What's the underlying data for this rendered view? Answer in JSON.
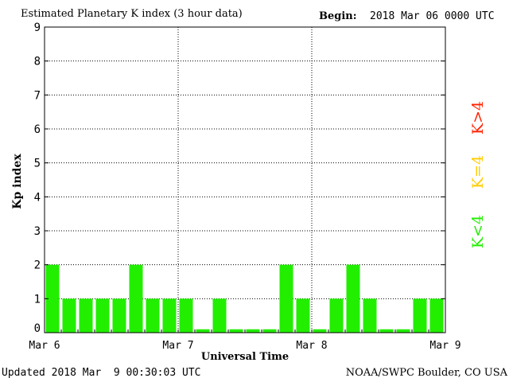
{
  "header": {
    "title": "Estimated Planetary K index (3 hour data)",
    "begin_label": "Begin:",
    "begin_value": "2018 Mar 06 0000 UTC"
  },
  "footer": {
    "updated": "Updated 2018 Mar  9 00:30:03 UTC",
    "credit": "NOAA/SWPC Boulder, CO USA"
  },
  "legend": {
    "high": {
      "label": "K>4",
      "color": "#ff2200"
    },
    "equal": {
      "label": "K=4",
      "color": "#ffcc00"
    },
    "low": {
      "label": "K<4",
      "color": "#22ee00"
    }
  },
  "chart_data": {
    "type": "bar",
    "title": "Estimated Planetary K index (3 hour data)",
    "xlabel": "Universal Time",
    "ylabel": "Kp index",
    "ylim": [
      0,
      9
    ],
    "yticks": [
      "0",
      "1",
      "2",
      "3",
      "4",
      "5",
      "6",
      "7",
      "8",
      "9"
    ],
    "xticks": [
      "Mar 6",
      "Mar 7",
      "Mar 8",
      "Mar 9"
    ],
    "grid": true,
    "bar_color": "#22ee00",
    "values": [
      2,
      1,
      1,
      1,
      1,
      2,
      1,
      1,
      1,
      0.1,
      1,
      0.1,
      0.1,
      0.1,
      2,
      1,
      0.1,
      1,
      2,
      1,
      0.1,
      0.1,
      1,
      1
    ]
  }
}
